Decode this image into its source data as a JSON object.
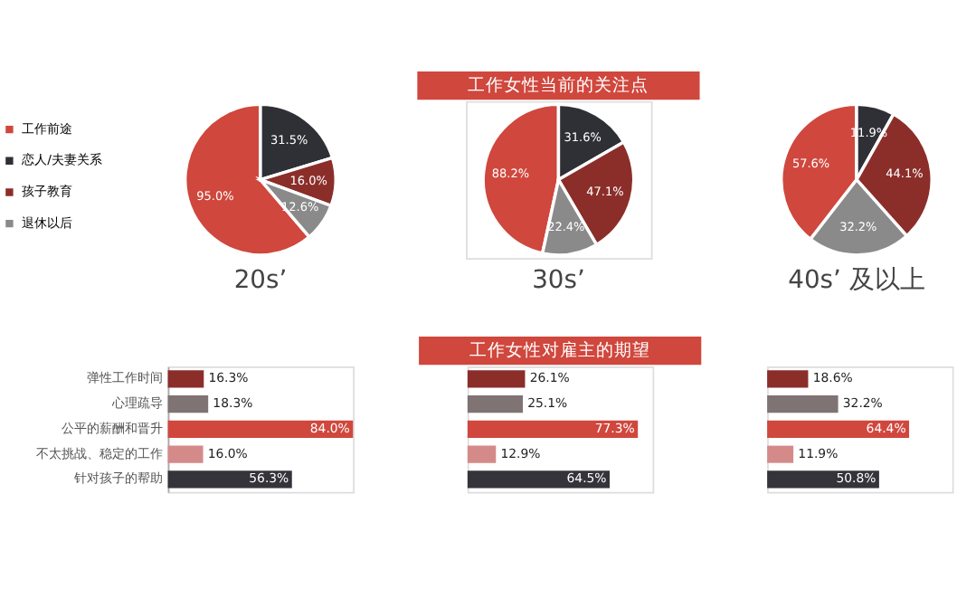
{
  "chart_data": [
    {
      "type": "pie",
      "xlabel": "20s’",
      "categories": [
        "工作前途",
        "恋人/夫妻关系",
        "孩子教育",
        "退休以后"
      ],
      "values": [
        95.0,
        31.5,
        16.0,
        12.6
      ],
      "value_labels": [
        "95.0%",
        "31.5%",
        "16.0%",
        "12.6%"
      ],
      "colors": [
        "#d0473d",
        "#2f2f36",
        "#8b2e2a",
        "#8a8a8a"
      ],
      "legend": "left"
    },
    {
      "type": "pie",
      "title": "工作女性当前的关注点",
      "xlabel": "30s’",
      "categories": [
        null,
        null,
        null,
        null
      ],
      "values": [
        88.2,
        31.6,
        47.1,
        22.4
      ],
      "value_labels": [
        "88.2%",
        "31.6%",
        "47.1%",
        "22.4%"
      ],
      "colors": [
        "#d0473d",
        "#2f2f36",
        "#8b2e2a",
        "#8a8a8a"
      ]
    },
    {
      "type": "pie",
      "xlabel": "40s’ 及以上",
      "categories": [
        null,
        null,
        null,
        null
      ],
      "values": [
        57.6,
        11.9,
        44.1,
        32.2
      ],
      "value_labels": [
        "57.6%",
        "11.9%",
        "44.1%",
        "32.2%"
      ],
      "colors": [
        "#d0473d",
        "#2f2f36",
        "#8b2e2a",
        "#8a8a8a"
      ]
    },
    {
      "type": "bar",
      "orientation": "horizontal",
      "categories": [
        "弹性工作时间",
        "心理疏导",
        "公平的薪酬和晋升",
        "不太挑战、稳定的工作",
        "针对孩子的帮助"
      ],
      "values": [
        16.3,
        18.3,
        84.0,
        16.0,
        56.3
      ],
      "value_labels": [
        "16.3%",
        "18.3%",
        "84.0%",
        "16.0%",
        "56.3%"
      ],
      "colors": [
        "#8b2e2a",
        "#7f7473",
        "#d0473d",
        "#d58a8a",
        "#34343a"
      ],
      "tick_labels": "y"
    },
    {
      "type": "bar",
      "orientation": "horizontal",
      "title": "工作女性对雇主的期望",
      "categories": [
        null,
        null,
        null,
        null,
        null
      ],
      "values": [
        26.1,
        25.1,
        77.3,
        12.9,
        64.5
      ],
      "value_labels": [
        "26.1%",
        "25.1%",
        "77.3%",
        "12.9%",
        "64.5%"
      ],
      "colors": [
        "#8b2e2a",
        "#7f7473",
        "#d0473d",
        "#d58a8a",
        "#34343a"
      ],
      "tick_labels": false
    },
    {
      "type": "bar",
      "orientation": "horizontal",
      "categories": [
        null,
        null,
        null,
        null,
        null
      ],
      "values": [
        18.6,
        32.2,
        64.4,
        11.9,
        50.8
      ],
      "value_labels": [
        "18.6%",
        "32.2%",
        "64.4%",
        "11.9%",
        "50.8%"
      ],
      "colors": [
        "#8b2e2a",
        "#7f7473",
        "#d0473d",
        "#d58a8a",
        "#34343a"
      ],
      "tick_labels": false
    }
  ]
}
